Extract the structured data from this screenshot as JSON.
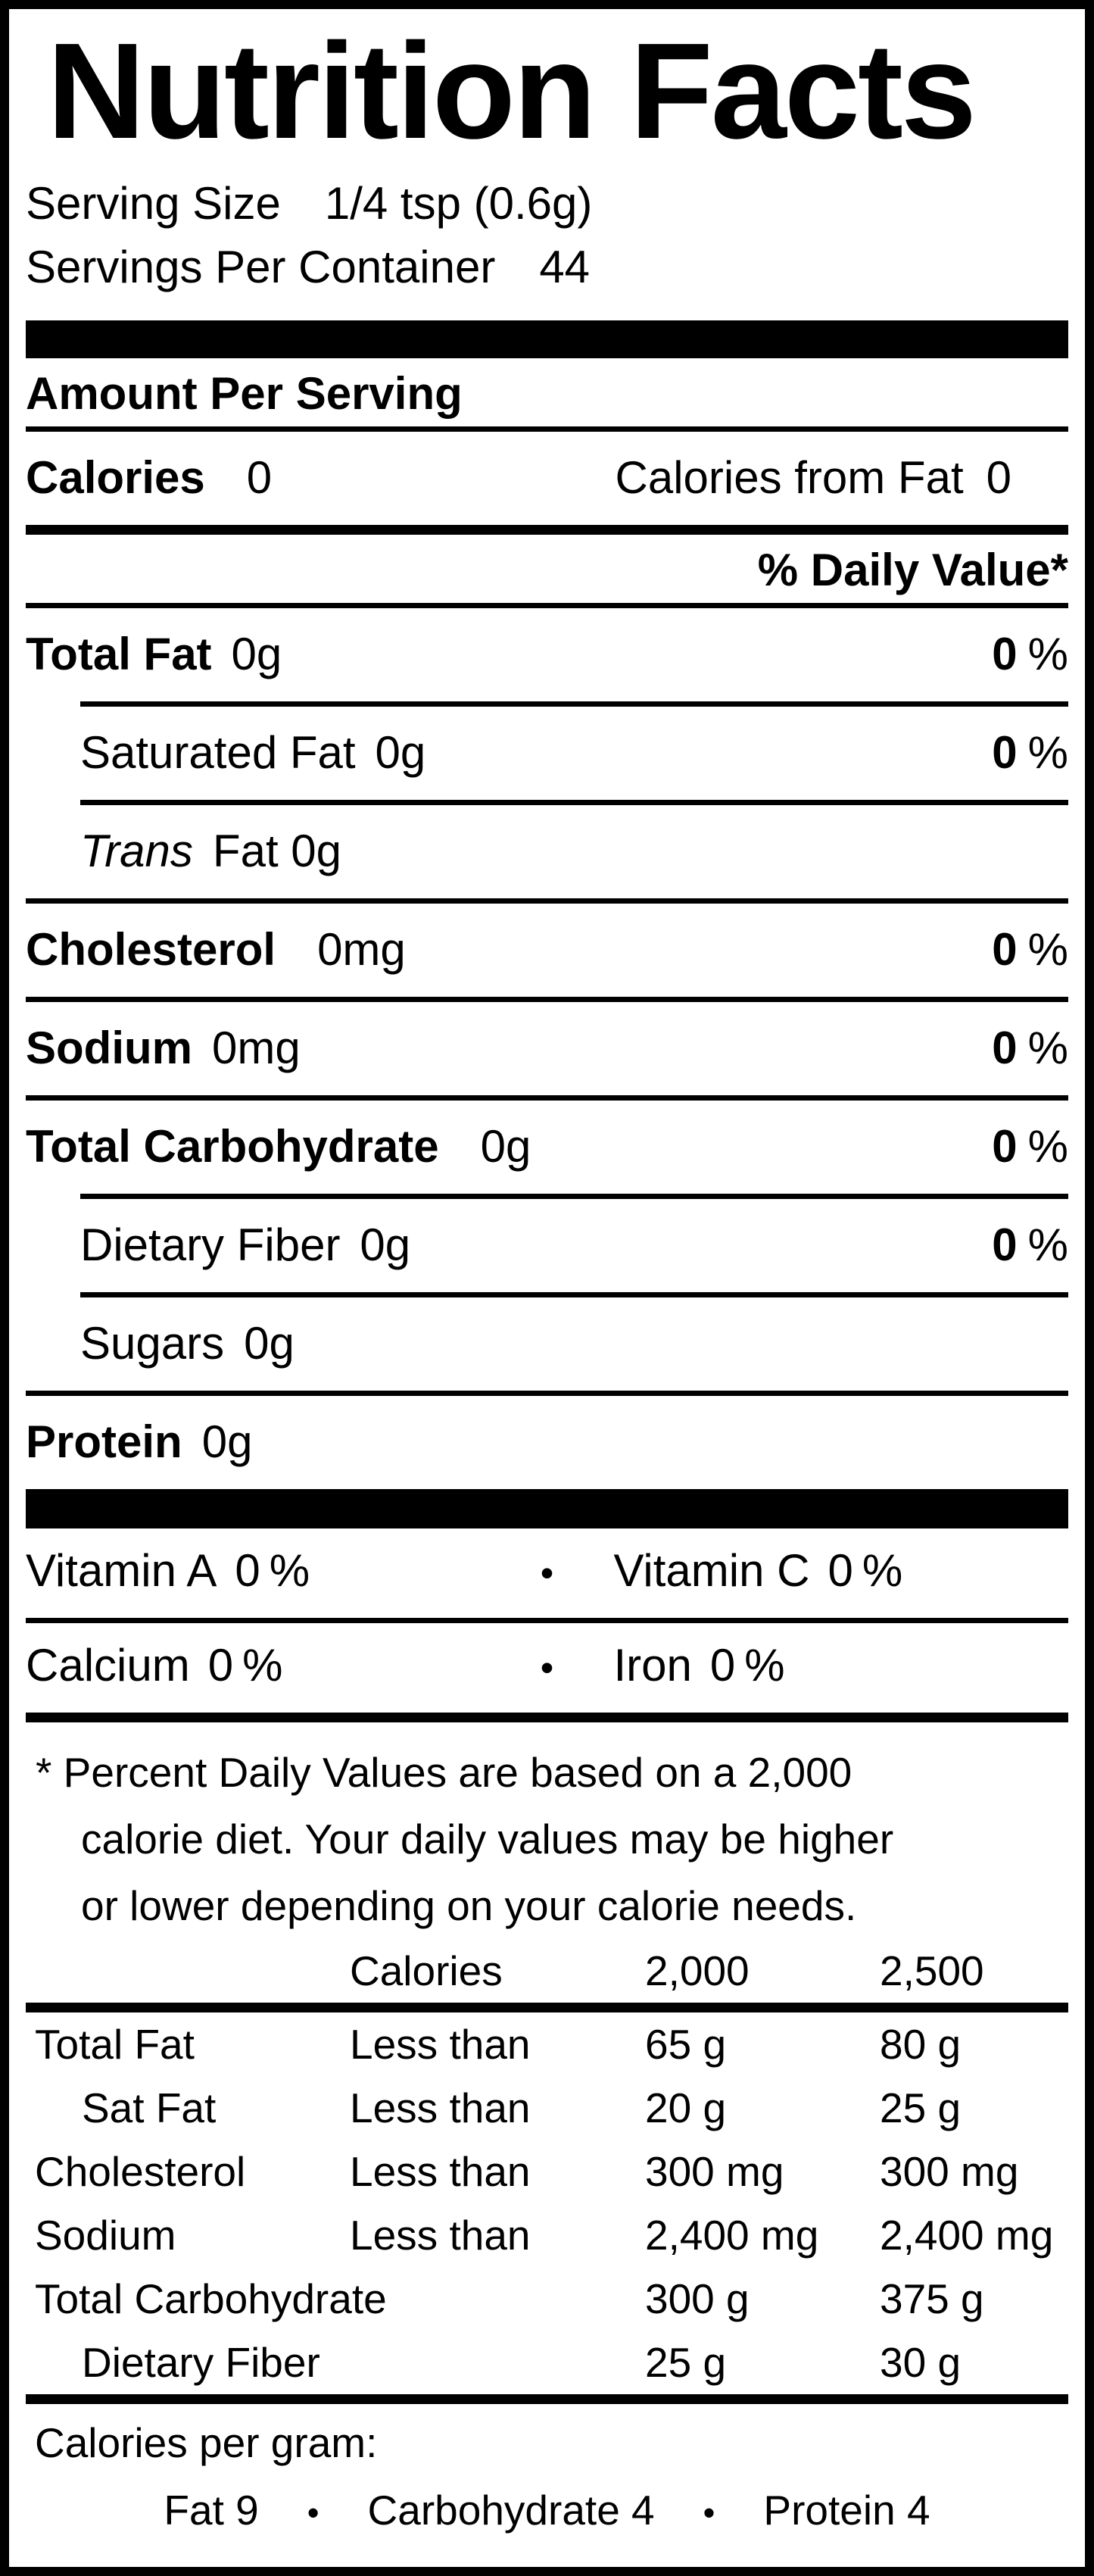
{
  "colors": {
    "background": "#ffffff",
    "text": "#000000",
    "border": "#000000"
  },
  "nutrition_label": {
    "title": "Nutrition Facts",
    "serving": {
      "size_label": "Serving Size",
      "size_value": "1/4 tsp  (0.6g)",
      "per_container_label": "Servings Per Container",
      "per_container_value": "44"
    },
    "amount_per_serving_heading": "Amount Per Serving",
    "calories_row": {
      "label": "Calories",
      "value": "0",
      "from_fat_label": "Calories from Fat",
      "from_fat_value": "0"
    },
    "daily_value_header": "% Daily Value*",
    "percent_sign": "%",
    "nutrients": [
      {
        "label": "Total Fat",
        "amount": "0g",
        "dv": "0"
      },
      {
        "label": "Saturated Fat",
        "amount": "0g",
        "dv": "0"
      },
      {
        "label_italic": "Trans",
        "label_rest": "Fat 0g"
      },
      {
        "label": "Cholesterol",
        "amount": "0mg",
        "dv": "0"
      },
      {
        "label": "Sodium",
        "amount": "0mg",
        "dv": "0"
      },
      {
        "label": "Total Carbohydrate",
        "amount": "0g",
        "dv": "0"
      },
      {
        "label": "Dietary Fiber",
        "amount": "0g",
        "dv": "0"
      },
      {
        "label": "Sugars",
        "amount": "0g"
      },
      {
        "label": "Protein",
        "amount": "0g"
      }
    ],
    "bullet": "•",
    "vitamin_rows": [
      {
        "left_label": "Vitamin A",
        "left_value": "0",
        "right_label": "Vitamin C",
        "right_value": "0"
      },
      {
        "left_label": "Calcium",
        "left_value": "0",
        "right_label": "Iron",
        "right_value": "0"
      }
    ],
    "footnote_lines": [
      "* Percent Daily Values are based on a 2,000",
      "calorie diet. Your daily values may be higher",
      "or lower depending on your calorie needs."
    ],
    "dv_table": {
      "header": {
        "calories": "Calories",
        "col_2000": "2,000",
        "col_2500": "2,500"
      },
      "rows": [
        {
          "name": "Total Fat",
          "qualifier": "Less than",
          "v2000": "65 g",
          "v2500": "80 g"
        },
        {
          "name": "Sat Fat",
          "qualifier": "Less than",
          "v2000": "20 g",
          "v2500": "25 g"
        },
        {
          "name": "Cholesterol",
          "qualifier": "Less than",
          "v2000": "300 mg",
          "v2500": "300 mg"
        },
        {
          "name": "Sodium",
          "qualifier": "Less than",
          "v2000": "2,400 mg",
          "v2500": "2,400 mg"
        },
        {
          "name": "Total Carbohydrate",
          "qualifier": "",
          "v2000": "300 g",
          "v2500": "375 g"
        },
        {
          "name": "Dietary Fiber",
          "qualifier": "",
          "v2000": "25 g",
          "v2500": "30 g"
        }
      ]
    },
    "calories_per_gram": {
      "heading": "Calories per gram:",
      "items": [
        "Fat 9",
        "Carbohydrate 4",
        "Protein 4"
      ]
    }
  }
}
